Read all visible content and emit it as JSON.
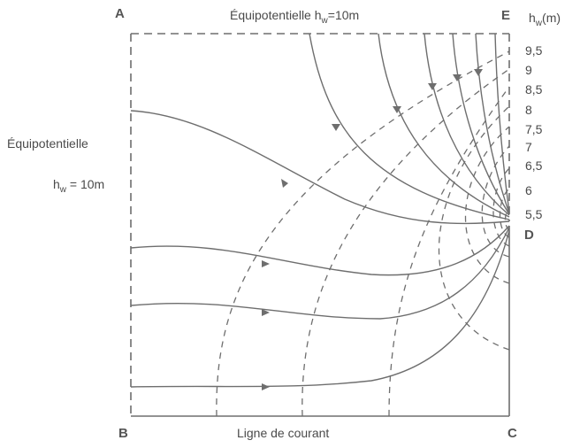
{
  "figure": {
    "corners": {
      "A": "A",
      "B": "B",
      "C": "C",
      "D": "D",
      "E": "E"
    },
    "top_label": {
      "prefix": "Équipotentielle  h",
      "sub": "w",
      "suffix": "=10m"
    },
    "left_label": {
      "line1": "Équipotentielle",
      "prefix": "h",
      "sub": "w",
      "suffix": " = 10m"
    },
    "bottom_label": "Ligne de courant",
    "axis_label": {
      "prefix": "h",
      "sub": "w",
      "suffix": "(m)"
    },
    "head_ticks": [
      "9,5",
      "9",
      "8,5",
      "8",
      "7,5",
      "7",
      "6,5",
      "6",
      "5,5"
    ],
    "colors": {
      "stroke": "#6e6e6e",
      "text": "#4a4a4a"
    }
  }
}
